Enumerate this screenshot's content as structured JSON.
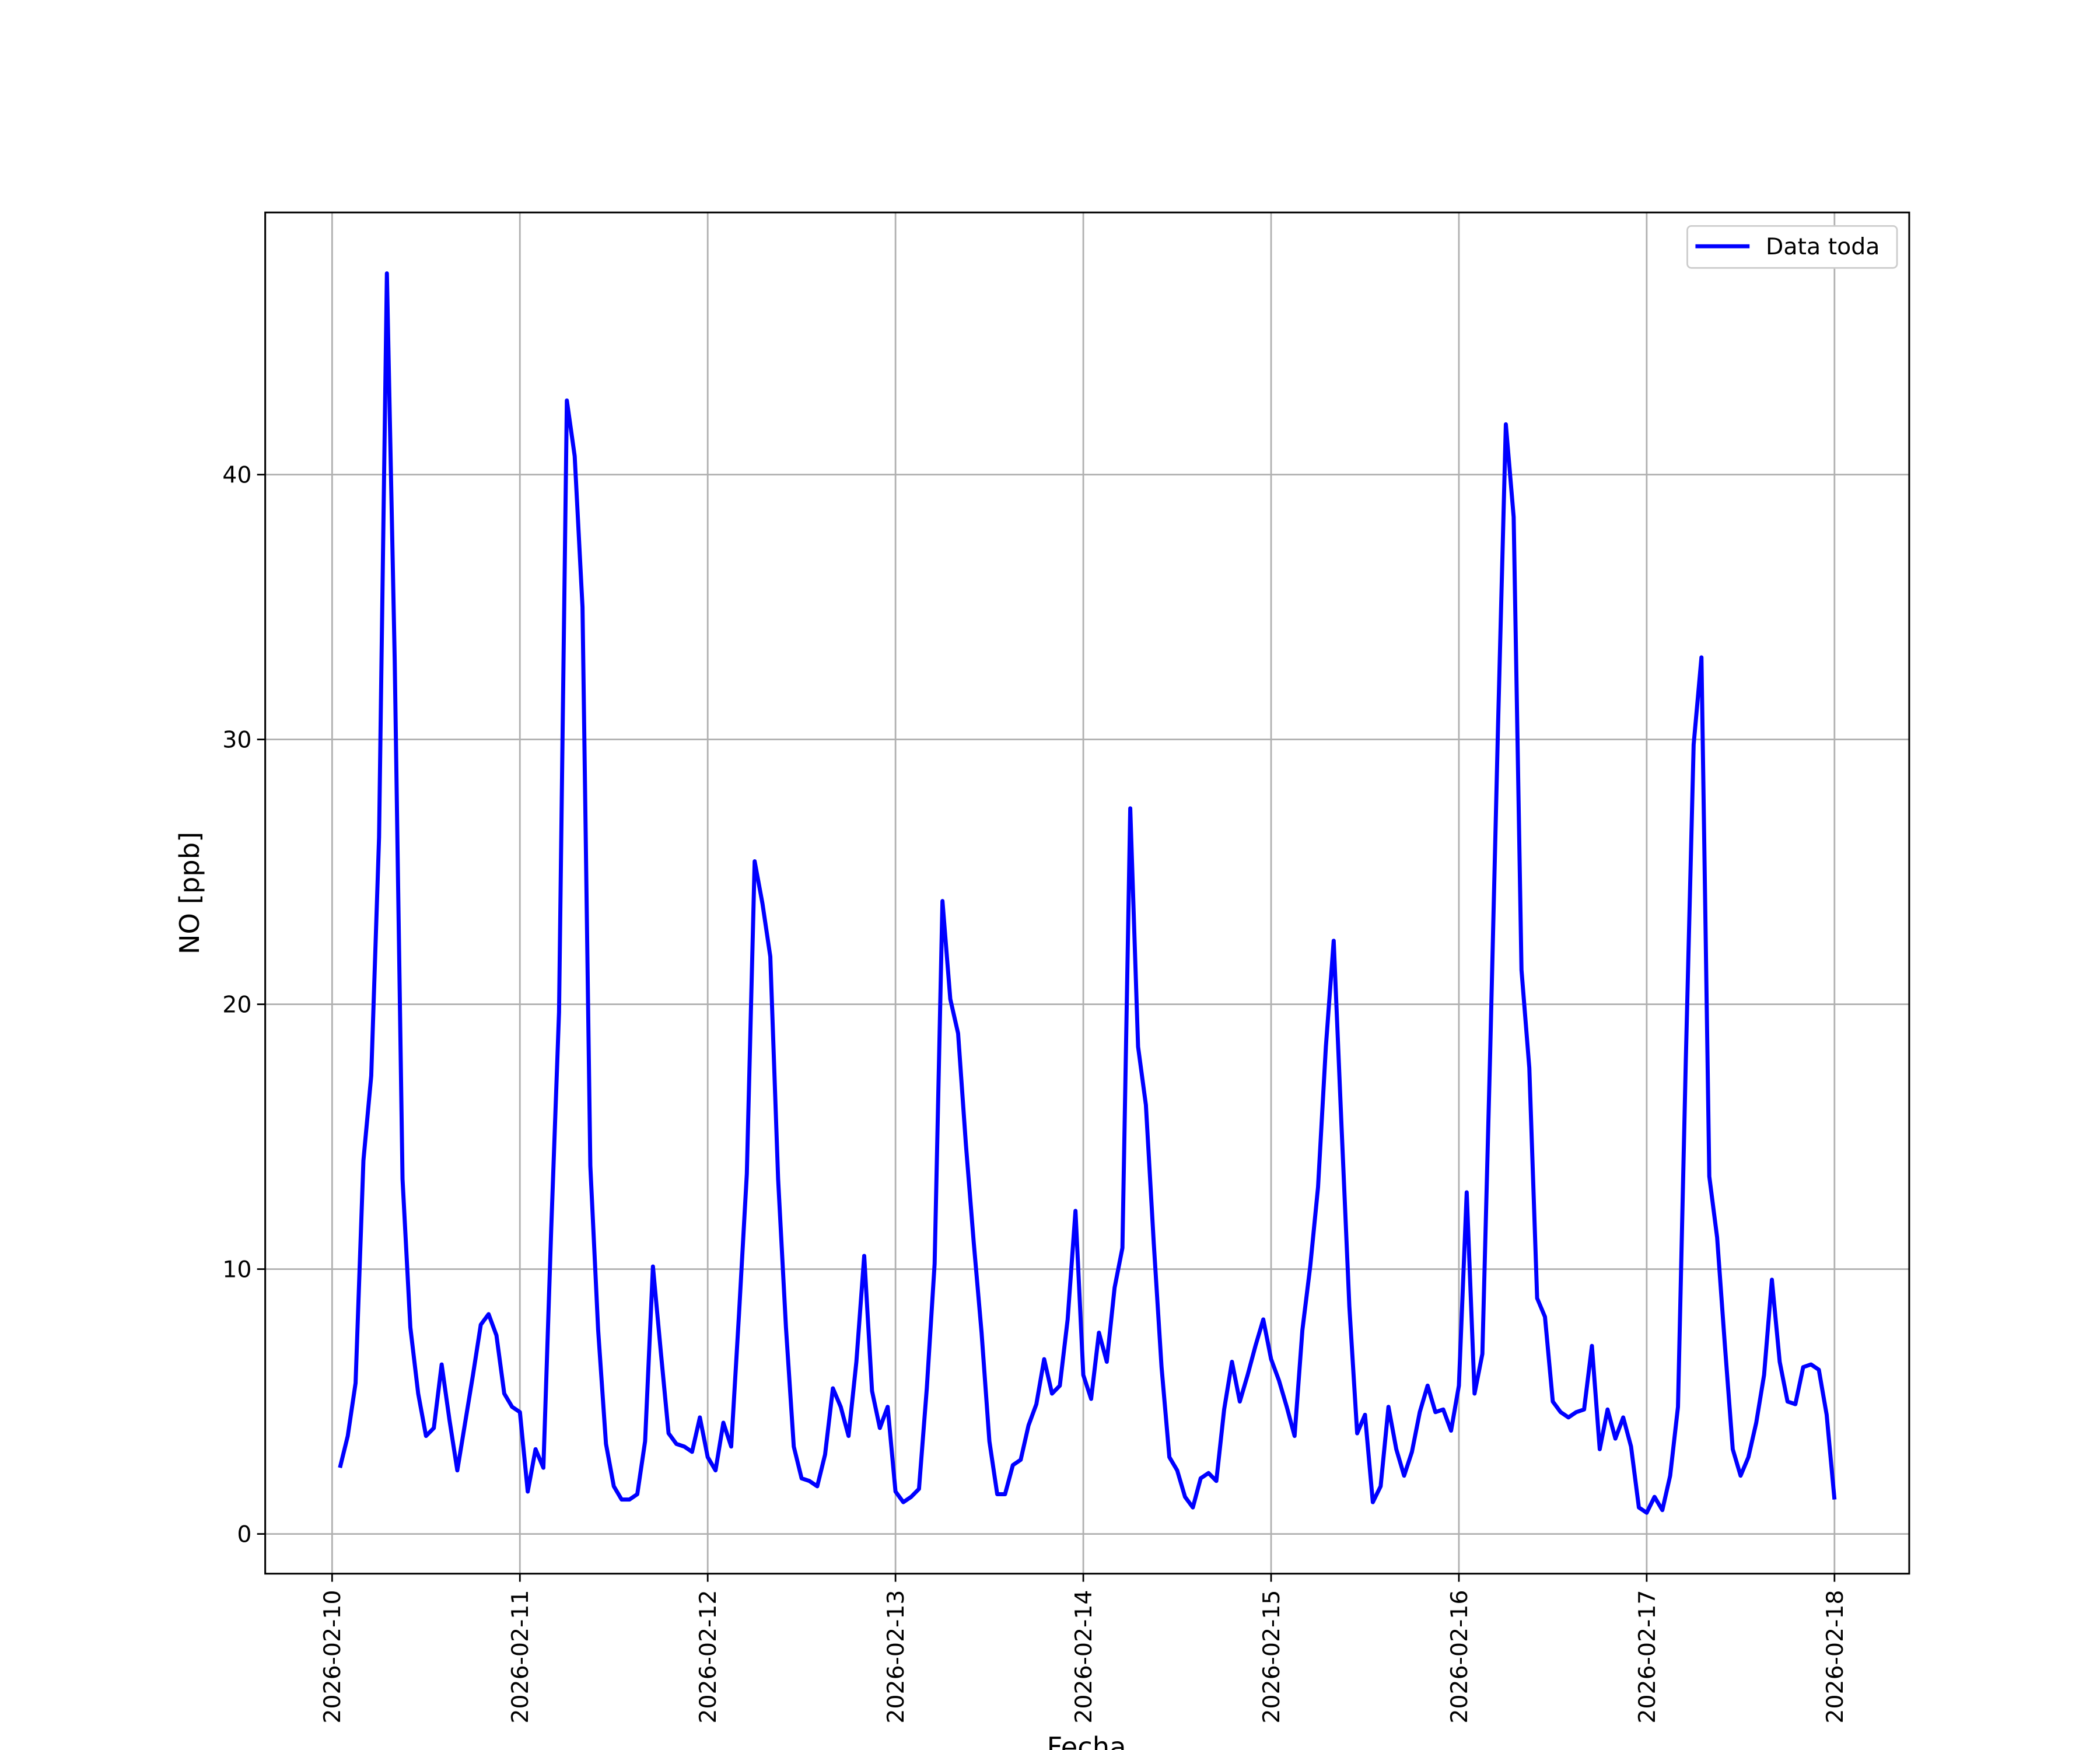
{
  "chart_data": {
    "type": "line",
    "ylabel": "NO [ppb]",
    "xlabel": "Fecha",
    "x": [
      "2026-02-10 01:00",
      "2026-02-10 02:00",
      "2026-02-10 03:00",
      "2026-02-10 04:00",
      "2026-02-10 05:00",
      "2026-02-10 06:00",
      "2026-02-10 07:00",
      "2026-02-10 08:00",
      "2026-02-10 09:00",
      "2026-02-10 10:00",
      "2026-02-10 11:00",
      "2026-02-10 12:00",
      "2026-02-10 13:00",
      "2026-02-10 14:00",
      "2026-02-10 15:00",
      "2026-02-10 16:00",
      "2026-02-10 17:00",
      "2026-02-10 18:00",
      "2026-02-10 19:00",
      "2026-02-10 20:00",
      "2026-02-10 21:00",
      "2026-02-10 22:00",
      "2026-02-10 23:00",
      "2026-02-11 00:00",
      "2026-02-11 01:00",
      "2026-02-11 02:00",
      "2026-02-11 03:00",
      "2026-02-11 04:00",
      "2026-02-11 05:00",
      "2026-02-11 06:00",
      "2026-02-11 07:00",
      "2026-02-11 08:00",
      "2026-02-11 09:00",
      "2026-02-11 10:00",
      "2026-02-11 11:00",
      "2026-02-11 12:00",
      "2026-02-11 13:00",
      "2026-02-11 14:00",
      "2026-02-11 15:00",
      "2026-02-11 16:00",
      "2026-02-11 17:00",
      "2026-02-11 18:00",
      "2026-02-11 19:00",
      "2026-02-11 20:00",
      "2026-02-11 21:00",
      "2026-02-11 22:00",
      "2026-02-11 23:00",
      "2026-02-12 00:00",
      "2026-02-12 01:00",
      "2026-02-12 02:00",
      "2026-02-12 03:00",
      "2026-02-12 04:00",
      "2026-02-12 05:00",
      "2026-02-12 06:00",
      "2026-02-12 07:00",
      "2026-02-12 08:00",
      "2026-02-12 09:00",
      "2026-02-12 10:00",
      "2026-02-12 11:00",
      "2026-02-12 12:00",
      "2026-02-12 13:00",
      "2026-02-12 14:00",
      "2026-02-12 15:00",
      "2026-02-12 16:00",
      "2026-02-12 17:00",
      "2026-02-12 18:00",
      "2026-02-12 19:00",
      "2026-02-12 20:00",
      "2026-02-12 21:00",
      "2026-02-12 22:00",
      "2026-02-12 23:00",
      "2026-02-13 00:00",
      "2026-02-13 01:00",
      "2026-02-13 02:00",
      "2026-02-13 03:00",
      "2026-02-13 04:00",
      "2026-02-13 05:00",
      "2026-02-13 06:00",
      "2026-02-13 07:00",
      "2026-02-13 08:00",
      "2026-02-13 09:00",
      "2026-02-13 10:00",
      "2026-02-13 11:00",
      "2026-02-13 12:00",
      "2026-02-13 13:00",
      "2026-02-13 14:00",
      "2026-02-13 15:00",
      "2026-02-13 16:00",
      "2026-02-13 17:00",
      "2026-02-13 18:00",
      "2026-02-13 19:00",
      "2026-02-13 20:00",
      "2026-02-13 21:00",
      "2026-02-13 22:00",
      "2026-02-13 23:00",
      "2026-02-14 00:00",
      "2026-02-14 01:00",
      "2026-02-14 02:00",
      "2026-02-14 03:00",
      "2026-02-14 04:00",
      "2026-02-14 05:00",
      "2026-02-14 06:00",
      "2026-02-14 07:00",
      "2026-02-14 08:00",
      "2026-02-14 09:00",
      "2026-02-14 10:00",
      "2026-02-14 11:00",
      "2026-02-14 12:00",
      "2026-02-14 13:00",
      "2026-02-14 14:00",
      "2026-02-14 15:00",
      "2026-02-14 16:00",
      "2026-02-14 17:00",
      "2026-02-14 18:00",
      "2026-02-14 19:00",
      "2026-02-14 20:00",
      "2026-02-14 21:00",
      "2026-02-14 22:00",
      "2026-02-14 23:00",
      "2026-02-15 00:00",
      "2026-02-15 01:00",
      "2026-02-15 02:00",
      "2026-02-15 03:00",
      "2026-02-15 04:00",
      "2026-02-15 05:00",
      "2026-02-15 06:00",
      "2026-02-15 07:00",
      "2026-02-15 08:00",
      "2026-02-15 09:00",
      "2026-02-15 10:00",
      "2026-02-15 11:00",
      "2026-02-15 12:00",
      "2026-02-15 13:00",
      "2026-02-15 14:00",
      "2026-02-15 15:00",
      "2026-02-15 16:00",
      "2026-02-15 17:00",
      "2026-02-15 18:00",
      "2026-02-15 19:00",
      "2026-02-15 20:00",
      "2026-02-15 21:00",
      "2026-02-15 22:00",
      "2026-02-15 23:00",
      "2026-02-16 00:00",
      "2026-02-16 01:00",
      "2026-02-16 02:00",
      "2026-02-16 03:00",
      "2026-02-16 04:00",
      "2026-02-16 05:00",
      "2026-02-16 06:00",
      "2026-02-16 07:00",
      "2026-02-16 08:00",
      "2026-02-16 09:00",
      "2026-02-16 10:00",
      "2026-02-16 11:00",
      "2026-02-16 12:00",
      "2026-02-16 13:00",
      "2026-02-16 14:00",
      "2026-02-16 15:00",
      "2026-02-16 16:00",
      "2026-02-16 17:00",
      "2026-02-16 18:00",
      "2026-02-16 19:00",
      "2026-02-16 20:00",
      "2026-02-16 21:00",
      "2026-02-16 22:00",
      "2026-02-16 23:00",
      "2026-02-17 00:00",
      "2026-02-17 01:00",
      "2026-02-17 02:00",
      "2026-02-17 03:00",
      "2026-02-17 04:00",
      "2026-02-17 05:00",
      "2026-02-17 06:00",
      "2026-02-17 07:00",
      "2026-02-17 08:00",
      "2026-02-17 09:00",
      "2026-02-17 10:00",
      "2026-02-17 11:00",
      "2026-02-17 12:00",
      "2026-02-17 13:00",
      "2026-02-17 14:00",
      "2026-02-17 15:00",
      "2026-02-17 16:00",
      "2026-02-17 17:00",
      "2026-02-17 18:00",
      "2026-02-17 19:00",
      "2026-02-17 20:00",
      "2026-02-17 21:00",
      "2026-02-17 22:00",
      "2026-02-17 23:00",
      "2026-02-18 00:00"
    ],
    "series": [
      {
        "name": "Data toda",
        "color": "#0000ff",
        "values": [
          2.5,
          3.7,
          5.7,
          14.1,
          17.3,
          26.3,
          47.6,
          33,
          13.4,
          7.8,
          5.3,
          3.7,
          4.0,
          6.4,
          4.3,
          2.4,
          4.2,
          6.0,
          7.9,
          8.3,
          7.5,
          5.3,
          4.8,
          4.6,
          1.6,
          3.2,
          2.5,
          11.5,
          19.7,
          42.8,
          40.7,
          35,
          13.9,
          7.7,
          3.4,
          1.8,
          1.3,
          1.3,
          1.5,
          3.5,
          10.1,
          6.9,
          3.8,
          3.4,
          3.3,
          3.1,
          4.4,
          2.9,
          2.4,
          4.2,
          3.3,
          8.3,
          13.6,
          25.4,
          23.8,
          21.8,
          13.4,
          7.8,
          3.3,
          2.1,
          2.0,
          1.8,
          3.0,
          5.5,
          4.8,
          3.7,
          6.5,
          10.5,
          5.4,
          4.0,
          4.8,
          1.6,
          1.2,
          1.4,
          1.7,
          5.5,
          10.2,
          23.9,
          20.2,
          18.9,
          14.7,
          11.0,
          7.6,
          3.5,
          1.5,
          1.5,
          2.6,
          2.8,
          4.1,
          4.9,
          6.6,
          5.3,
          5.6,
          8.1,
          12.2,
          6.0,
          5.1,
          7.6,
          6.5,
          9.3,
          10.8,
          27.4,
          18.4,
          16.2,
          11.0,
          6.3,
          2.9,
          2.4,
          1.4,
          1.0,
          2.1,
          2.3,
          2.0,
          4.7,
          6.5,
          5.0,
          6.0,
          7.1,
          8.1,
          6.6,
          5.8,
          4.8,
          3.7,
          7.7,
          10.1,
          13.1,
          18.4,
          22.4,
          15.4,
          8.6,
          3.8,
          4.5,
          1.2,
          1.8,
          4.8,
          3.2,
          2.2,
          3.1,
          4.6,
          5.6,
          4.6,
          4.7,
          3.9,
          5.6,
          12.9,
          5.3,
          6.8,
          18.2,
          30.5,
          41.9,
          38.4,
          21.3,
          17.6,
          8.9,
          8.2,
          5.0,
          4.6,
          4.4,
          4.6,
          4.7,
          7.1,
          3.2,
          4.7,
          3.6,
          4.4,
          3.3,
          1.0,
          0.8,
          1.4,
          0.9,
          2.2,
          4.8,
          17.9,
          29.8,
          33.1,
          13.5,
          11.2,
          7.1,
          3.2,
          2.2,
          2.9,
          4.2,
          6.0,
          9.6,
          6.5,
          5.0,
          4.9,
          6.3,
          6.4,
          6.2,
          4.5,
          1.3
        ]
      }
    ],
    "xlim": [
      "2026-02-09 15:27",
      "2026-02-18 09:33"
    ],
    "xticks": [
      "2026-02-10",
      "2026-02-11",
      "2026-02-12",
      "2026-02-13",
      "2026-02-14",
      "2026-02-15",
      "2026-02-16",
      "2026-02-17",
      "2026-02-18"
    ],
    "ylim": [
      -1.5,
      49.9
    ],
    "yticks": [
      0,
      10,
      20,
      30,
      40
    ],
    "grid": true,
    "legend": "upper right"
  }
}
